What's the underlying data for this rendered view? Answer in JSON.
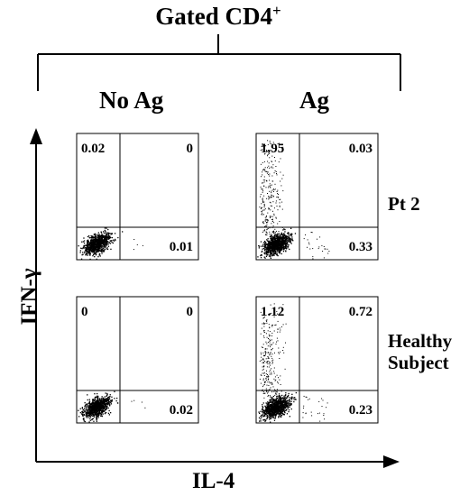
{
  "title": {
    "text": "Gated CD4",
    "superscript": "+"
  },
  "columns": [
    {
      "label": "No Ag"
    },
    {
      "label": "Ag"
    }
  ],
  "rows": [
    {
      "label_lines": [
        "Pt 2"
      ]
    },
    {
      "label_lines": [
        "Healthy",
        "Subject"
      ]
    }
  ],
  "axes": {
    "y_label": "IFN-γ",
    "x_label": "IL-4"
  },
  "panels": [
    {
      "row": 0,
      "col": 0,
      "ul": "0.02",
      "ur": "0",
      "lr": "0.01"
    },
    {
      "row": 0,
      "col": 1,
      "ul": "1.95",
      "ur": "0.03",
      "lr": "0.33"
    },
    {
      "row": 1,
      "col": 0,
      "ul": "0",
      "ur": "0",
      "lr": "0.02"
    },
    {
      "row": 1,
      "col": 1,
      "ul": "1.12",
      "ur": "0.72",
      "lr": "0.23"
    }
  ],
  "colors": {
    "ink": "#000000",
    "background": "#ffffff"
  }
}
